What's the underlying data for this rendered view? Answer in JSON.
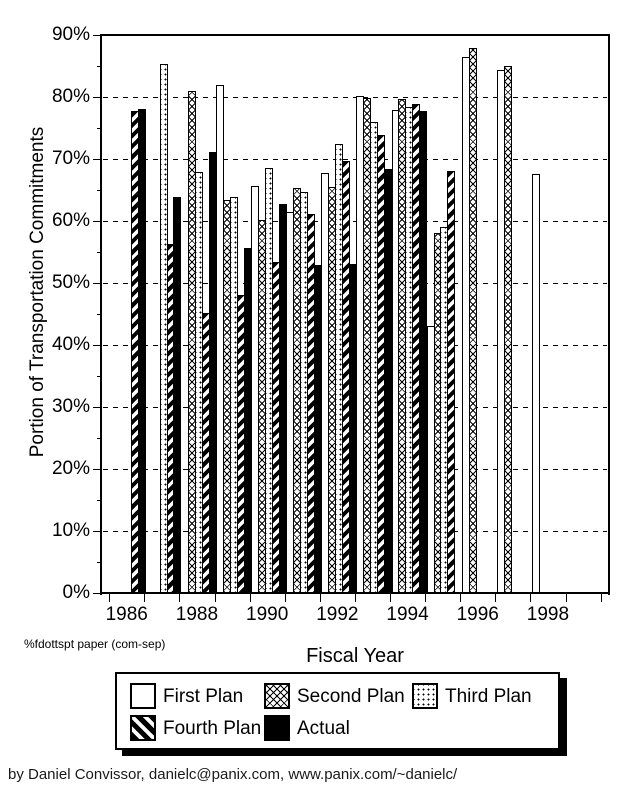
{
  "chart_data": {
    "type": "bar",
    "title": "",
    "xlabel": "Fiscal Year",
    "ylabel": "Portion of Transportation Commitments",
    "footnote": "%fdottspt paper  (com-sep)",
    "ylim": [
      0,
      90
    ],
    "y_unit": "%",
    "y_tick_labels": [
      "0%",
      "10%",
      "20%",
      "30%",
      "40%",
      "50%",
      "60%",
      "70%",
      "80%",
      "90%"
    ],
    "x_tick_labels": [
      "1986",
      "1988",
      "1990",
      "1992",
      "1994",
      "1996",
      "1998"
    ],
    "x_range_years": [
      1986,
      1998
    ],
    "grid": "horizontal dashed lines at 10%-80%",
    "legend_position": "boxed below chart with black drop shadow",
    "series": [
      {
        "name": "First Plan",
        "pattern": "plain-white",
        "values": {
          "1989": 82.0,
          "1990": 65.7,
          "1991": 61.5,
          "1992": 67.7,
          "1993": 80.2,
          "1994": 77.9,
          "1995": 43.0,
          "1996": 86.4,
          "1997": 84.3,
          "1998": 67.6
        }
      },
      {
        "name": "Second Plan",
        "pattern": "crosshatch",
        "values": {
          "1988": 81.0,
          "1989": 63.4,
          "1990": 60.2,
          "1991": 65.3,
          "1992": 65.5,
          "1993": 79.8,
          "1994": 79.6,
          "1995": 58.1,
          "1996": 87.9,
          "1997": 85.0
        }
      },
      {
        "name": "Third Plan",
        "pattern": "dots",
        "values": {
          "1987": 85.3,
          "1988": 67.9,
          "1989": 63.8,
          "1990": 68.5,
          "1991": 64.7,
          "1992": 72.5,
          "1993": 76.0,
          "1994": 78.4,
          "1995": 59.1
        }
      },
      {
        "name": "Fourth Plan",
        "pattern": "diagonal-stripes",
        "values": {
          "1986": 77.8,
          "1987": 56.3,
          "1988": 45.1,
          "1989": 48.0,
          "1990": 53.4,
          "1991": 61.2,
          "1992": 69.7,
          "1993": 73.8,
          "1994": 78.9,
          "1995": 68.0
        }
      },
      {
        "name": "Actual",
        "pattern": "solid-black",
        "values": {
          "1986": 78.1,
          "1987": 63.8,
          "1988": 71.2,
          "1989": 55.7,
          "1990": 62.8,
          "1991": 52.9,
          "1992": 53.1,
          "1993": 68.4,
          "1994": 77.7
        }
      }
    ]
  },
  "legend": {
    "items": [
      {
        "label": "First Plan",
        "pattern": "plain-white"
      },
      {
        "label": "Second Plan",
        "pattern": "crosshatch"
      },
      {
        "label": "Third Plan",
        "pattern": "dots"
      },
      {
        "label": "Fourth Plan",
        "pattern": "diagonal-stripes"
      },
      {
        "label": "Actual",
        "pattern": "solid-black"
      }
    ]
  },
  "credit": "by Daniel Convissor, danielc@panix.com, www.panix.com/~danielc/",
  "colors": {
    "foreground": "#000000",
    "background": "#ffffff"
  }
}
